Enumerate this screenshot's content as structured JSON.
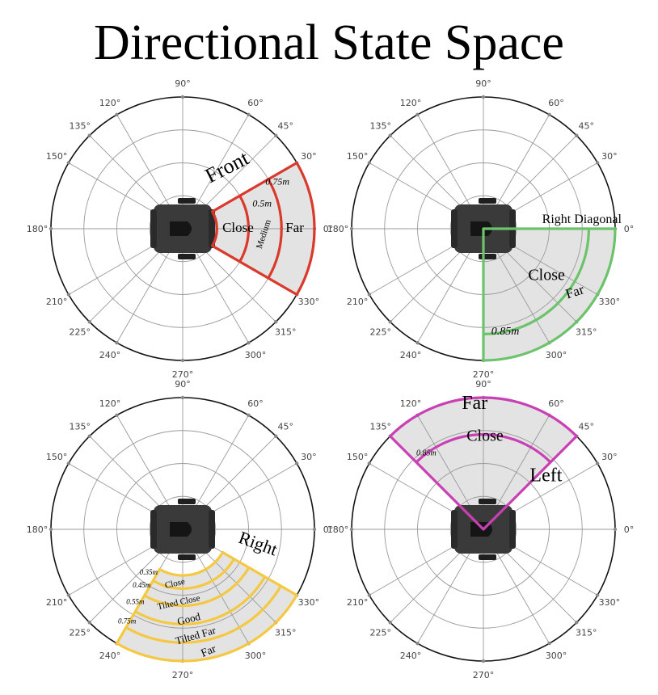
{
  "title": "Directional State Space",
  "angle_labels": [
    "90°",
    "60°",
    "45°",
    "30°",
    "0°",
    "330°",
    "315°",
    "300°",
    "270°",
    "240°",
    "225°",
    "210°",
    "180°",
    "150°",
    "135°",
    "120°"
  ],
  "panels": [
    {
      "name": "front",
      "color": "#d93a2b",
      "labels": [
        {
          "text": "Front",
          "angle": 53,
          "radius": 0.57,
          "size": 26,
          "rot": -27,
          "italic": false
        },
        {
          "text": "Close",
          "angle": 0,
          "radius": 0.42,
          "size": 17,
          "rot": 0,
          "italic": false
        },
        {
          "text": "Medium",
          "angle": -4,
          "radius": 0.62,
          "size": 11,
          "rot": -72,
          "italic": false
        },
        {
          "text": "Far",
          "angle": 0,
          "radius": 0.85,
          "size": 17,
          "rot": 0,
          "italic": false
        },
        {
          "text": "0.5m",
          "angle": 17,
          "radius": 0.63,
          "size": 12,
          "rot": 0,
          "italic": true
        },
        {
          "text": "0.75m",
          "angle": 26,
          "radius": 0.8,
          "size": 12,
          "rot": 0,
          "italic": true
        }
      ]
    },
    {
      "name": "right-diagonal",
      "color": "#6cc36c",
      "labels": [
        {
          "text": "Right Diagonal",
          "angle": 5,
          "radius": 0.75,
          "size": 16,
          "rot": 0,
          "italic": false
        },
        {
          "text": "Close",
          "angle": -37,
          "radius": 0.6,
          "size": 20,
          "rot": 0,
          "italic": false
        },
        {
          "text": "Far",
          "angle": -35,
          "radius": 0.85,
          "size": 17,
          "rot": -18,
          "italic": false
        },
        {
          "text": "0.85m",
          "angle": -78,
          "radius": 0.8,
          "size": 14,
          "rot": 0,
          "italic": true
        }
      ]
    },
    {
      "name": "right",
      "color": "#f5c842",
      "labels": [
        {
          "text": "Right",
          "angle": -12,
          "radius": 0.58,
          "size": 22,
          "rot": 20,
          "italic": false
        },
        {
          "text": "Close",
          "angle": -98,
          "radius": 0.42,
          "size": 11,
          "rot": -12,
          "italic": false
        },
        {
          "text": "Tilted Close",
          "angle": -93,
          "radius": 0.56,
          "size": 11,
          "rot": -12,
          "italic": false
        },
        {
          "text": "Good",
          "angle": -86,
          "radius": 0.69,
          "size": 13,
          "rot": -14,
          "italic": false
        },
        {
          "text": "Tilted Far",
          "angle": -83,
          "radius": 0.82,
          "size": 13,
          "rot": -16,
          "italic": false
        },
        {
          "text": "Far",
          "angle": -78,
          "radius": 0.95,
          "size": 14,
          "rot": -22,
          "italic": false
        },
        {
          "text": "0.35m",
          "angle": -128,
          "radius": 0.42,
          "size": 9,
          "rot": 0,
          "italic": true
        },
        {
          "text": "0.45m",
          "angle": -126,
          "radius": 0.53,
          "size": 9,
          "rot": 0,
          "italic": true
        },
        {
          "text": "0.55m",
          "angle": -123,
          "radius": 0.66,
          "size": 9,
          "rot": 0,
          "italic": true
        },
        {
          "text": "0.75m",
          "angle": -121,
          "radius": 0.82,
          "size": 9,
          "rot": 0,
          "italic": true
        }
      ]
    },
    {
      "name": "left",
      "color": "#c93fb4",
      "labels": [
        {
          "text": "Far",
          "angle": 94,
          "radius": 0.95,
          "size": 24,
          "rot": 0,
          "italic": false
        },
        {
          "text": "Close",
          "angle": 89,
          "radius": 0.7,
          "size": 20,
          "rot": 0,
          "italic": false
        },
        {
          "text": "Left",
          "angle": 40,
          "radius": 0.62,
          "size": 24,
          "rot": 0,
          "italic": false
        },
        {
          "text": "0.85m",
          "angle": 127,
          "radius": 0.72,
          "size": 10,
          "rot": 0,
          "italic": true
        }
      ]
    }
  ]
}
